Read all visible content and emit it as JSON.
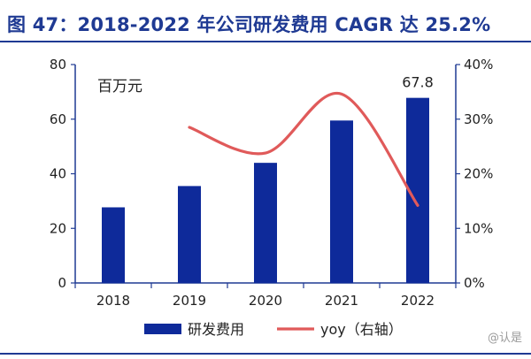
{
  "figure_title": "图 47：2018-2022 年公司研发费用 CAGR 达 25.2%",
  "watermark": "@认是",
  "colors": {
    "bar": "#0e2a9a",
    "line": "#e05a5a",
    "title": "#1f3a93",
    "axis": "#1f3a93"
  },
  "chart_data": {
    "type": "bar",
    "categories": [
      "2018",
      "2019",
      "2020",
      "2021",
      "2022"
    ],
    "unit_label": "百万元",
    "series": [
      {
        "name": "研发费用",
        "type": "bar",
        "axis": "left",
        "values": [
          27.7,
          35.5,
          44.0,
          59.5,
          67.8
        ]
      },
      {
        "name": "yoy（右轴）",
        "type": "line",
        "axis": "right",
        "values": [
          null,
          28.5,
          23.8,
          34.6,
          14.2
        ]
      }
    ],
    "data_labels": {
      "2022": "67.8"
    },
    "y_left": {
      "min": 0,
      "max": 80,
      "ticks": [
        "0",
        "20",
        "40",
        "60",
        "80"
      ]
    },
    "y_right": {
      "min": 0,
      "max": 40,
      "ticks": [
        "0%",
        "10%",
        "20%",
        "30%",
        "40%"
      ]
    },
    "grid": false,
    "legend_position": "bottom"
  }
}
